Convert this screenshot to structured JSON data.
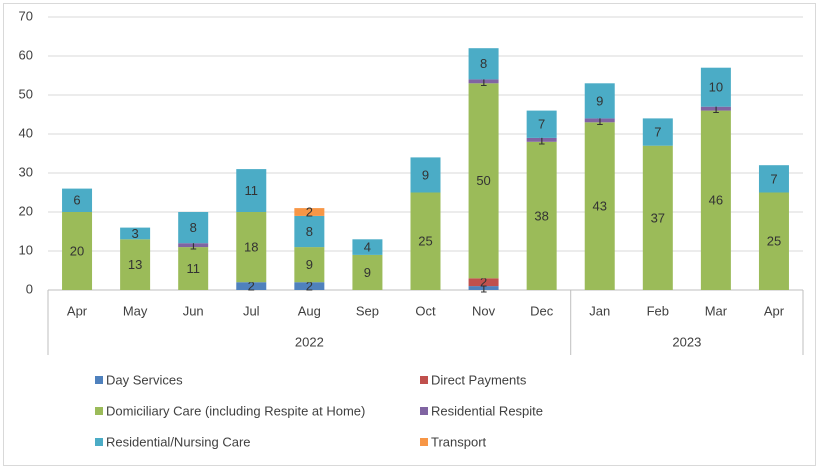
{
  "chart_data": {
    "type": "stacked_bar",
    "categories": [
      "Apr",
      "May",
      "Jun",
      "Jul",
      "Aug",
      "Sep",
      "Oct",
      "Nov",
      "Dec",
      "Jan",
      "Feb",
      "Mar",
      "Apr"
    ],
    "groups": [
      {
        "label": "2022",
        "span": 9
      },
      {
        "label": "2023",
        "span": 4
      }
    ],
    "series": [
      {
        "name": "Day Services",
        "color": "#4f81bd",
        "values": [
          null,
          null,
          null,
          2,
          2,
          null,
          null,
          1,
          null,
          null,
          null,
          null,
          null
        ]
      },
      {
        "name": "Direct Payments",
        "color": "#c0504d",
        "values": [
          null,
          null,
          null,
          null,
          null,
          null,
          null,
          2,
          null,
          null,
          null,
          null,
          null
        ]
      },
      {
        "name": "Domiciliary Care (including Respite at Home)",
        "color": "#9bbb59",
        "values": [
          20,
          13,
          11,
          18,
          9,
          9,
          25,
          50,
          38,
          43,
          37,
          46,
          25
        ]
      },
      {
        "name": "Residential Respite",
        "color": "#8064a2",
        "values": [
          null,
          null,
          1,
          null,
          null,
          null,
          null,
          1,
          1,
          1,
          null,
          1,
          null
        ]
      },
      {
        "name": "Residential/Nursing Care",
        "color": "#4bacc6",
        "values": [
          6,
          3,
          8,
          11,
          8,
          4,
          9,
          8,
          7,
          9,
          7,
          10,
          7
        ]
      },
      {
        "name": "Transport",
        "color": "#f79646",
        "values": [
          null,
          null,
          null,
          null,
          2,
          null,
          null,
          null,
          null,
          null,
          null,
          null,
          null
        ]
      }
    ],
    "ylim": [
      0,
      70
    ],
    "yticks": [
      0,
      10,
      20,
      30,
      40,
      50,
      60,
      70
    ],
    "grid": true,
    "data_labels": true
  }
}
